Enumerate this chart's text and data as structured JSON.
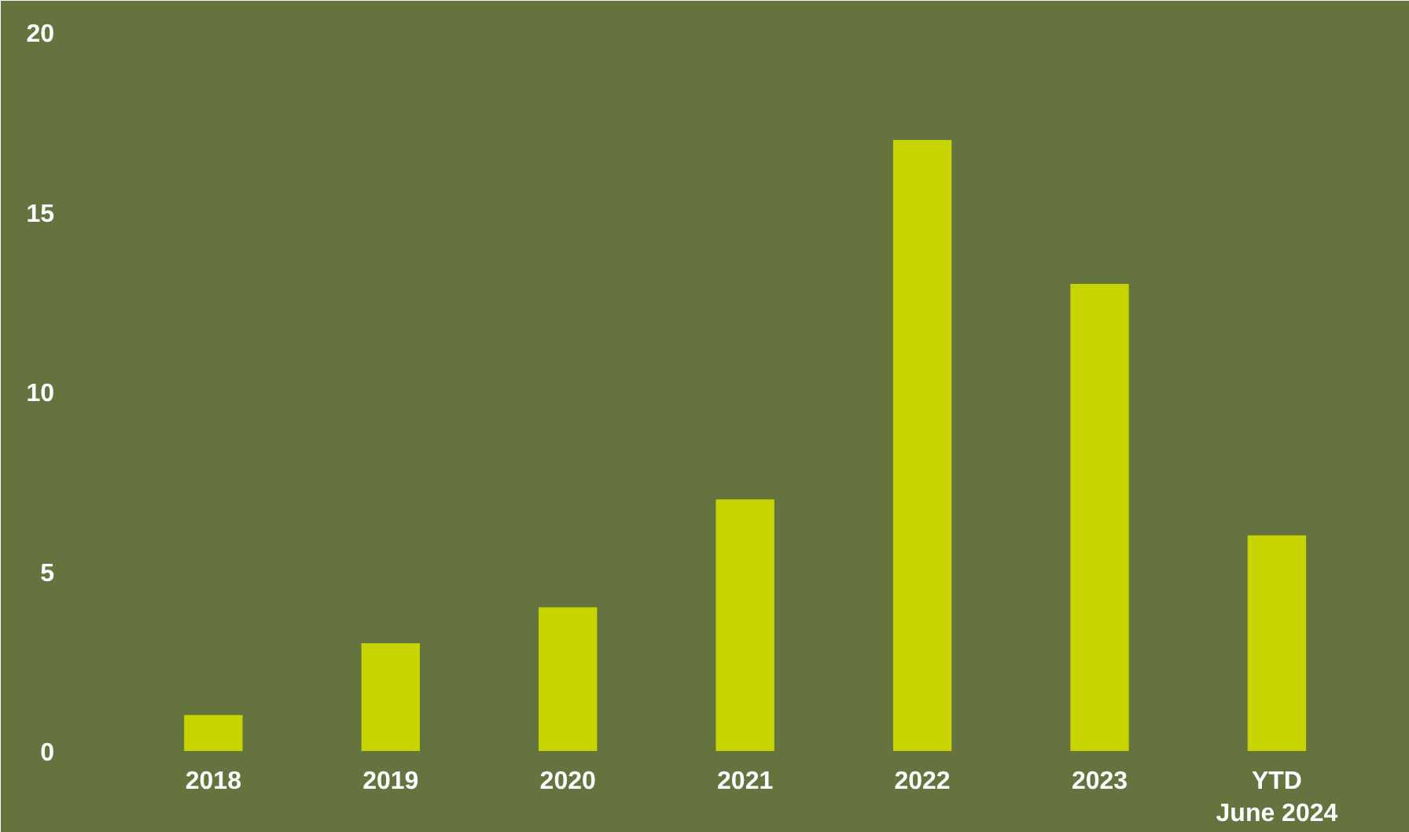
{
  "chart_data": {
    "type": "bar",
    "categories": [
      "2018",
      "2019",
      "2020",
      "2021",
      "2022",
      "2023",
      "YTD\nJune 2024"
    ],
    "values": [
      1,
      3,
      4,
      7,
      17,
      13,
      6
    ],
    "color": "#c8d400",
    "ylim": [
      0,
      20
    ],
    "yticks": [
      0,
      5,
      10,
      15,
      20
    ],
    "grid": false
  }
}
